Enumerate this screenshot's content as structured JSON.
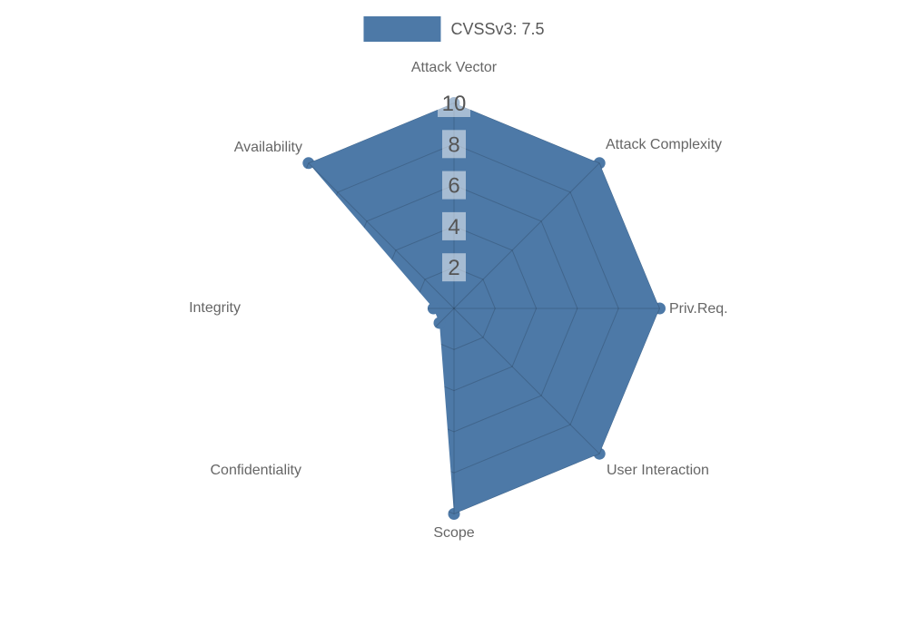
{
  "legend": {
    "label": "CVSSv3: 7.5",
    "swatch_color": "#4d79a7"
  },
  "chart_data": {
    "type": "radar",
    "title": "",
    "legend_entries": [
      "CVSSv3: 7.5"
    ],
    "legend_position": "top-center",
    "axes": [
      "Attack Vector",
      "Attack Complexity",
      "Priv.Req.",
      "User Interaction",
      "Scope",
      "Confidentiality",
      "Integrity",
      "Availability"
    ],
    "series": [
      {
        "name": "CVSSv3: 7.5",
        "color": "#4d79a7",
        "values": [
          10,
          10,
          10,
          10,
          10,
          1,
          1,
          10
        ]
      }
    ],
    "scale": {
      "min": 0,
      "max": 10,
      "ticks": [
        2,
        4,
        6,
        8,
        10
      ]
    },
    "tick_labels": [
      "2",
      "4",
      "6",
      "8",
      "10"
    ],
    "gridline_interpolation": "polygon",
    "grid_visible_only_inside_series": true,
    "start_axis": "top",
    "direction": "clockwise"
  },
  "colors": {
    "series_fill": "#4d79a7",
    "grid_line": "rgba(0,0,0,0.16)",
    "tick_box_fill": "rgba(255,255,255,0.5)",
    "tick_text": "#555555",
    "axis_label_text": "#666666",
    "legend_text": "#595959",
    "background": "#ffffff"
  }
}
